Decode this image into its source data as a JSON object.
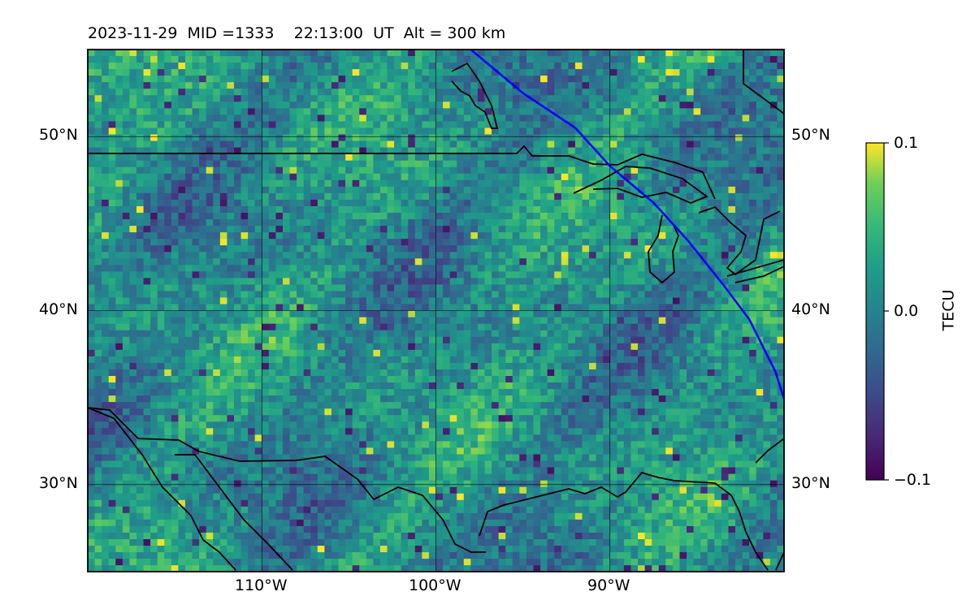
{
  "title": {
    "date": "2023-11-29",
    "mid": "MID =1333",
    "time": "22:13:00",
    "ut": "UT",
    "alt": "Alt = 300 km"
  },
  "map": {
    "lon_range": [
      -120,
      -80
    ],
    "lat_range": [
      25,
      55
    ],
    "grid": true,
    "lat_labels": [
      {
        "value": 50,
        "text": "50°N"
      },
      {
        "value": 40,
        "text": "40°N"
      },
      {
        "value": 30,
        "text": "30°N"
      }
    ],
    "lon_labels": [
      {
        "value": -110,
        "text": "110°W"
      },
      {
        "value": -100,
        "text": "100°W"
      },
      {
        "value": -90,
        "text": "90°W"
      }
    ],
    "track_color": "#0000ff",
    "track": [
      [
        -98,
        55
      ],
      [
        -95,
        52.5
      ],
      [
        -92,
        50.5
      ],
      [
        -90,
        48.3
      ],
      [
        -87.5,
        46.2
      ],
      [
        -85.5,
        44
      ],
      [
        -83.5,
        41.5
      ],
      [
        -82,
        39.5
      ],
      [
        -80.5,
        36.5
      ],
      [
        -79.7,
        34
      ]
    ],
    "coastline_color": "#000000"
  },
  "colorbar": {
    "label": "TECU",
    "colormap": "viridis",
    "vmin": -0.1,
    "vmax": 0.1,
    "ticks": [
      {
        "value": 0.1,
        "text": "0.1"
      },
      {
        "value": 0.0,
        "text": "0.0"
      },
      {
        "value": -0.1,
        "text": "−0.1"
      }
    ]
  }
}
